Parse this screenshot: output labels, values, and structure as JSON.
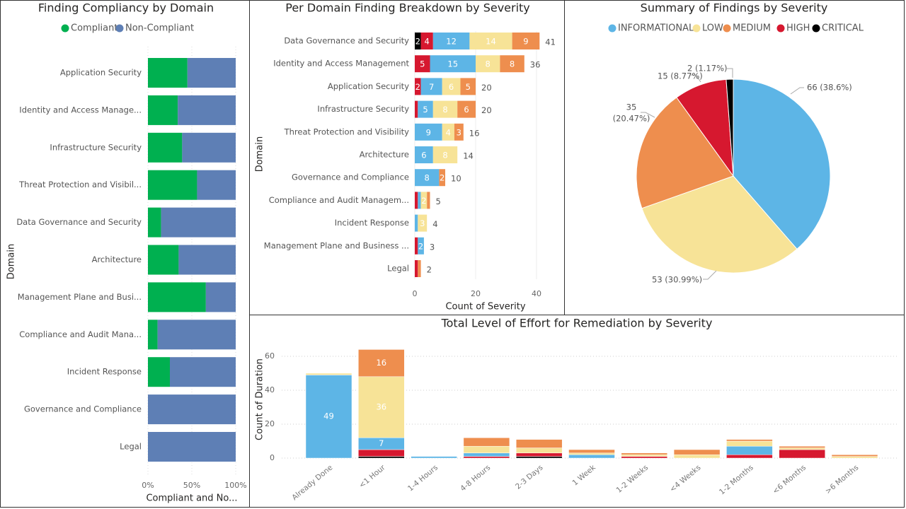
{
  "colors": {
    "compliant": "#00B050",
    "non_compliant": "#5E7FB5",
    "informational": "#5DB5E6",
    "low": "#F7E397",
    "medium": "#EE8E4E",
    "high": "#D6182F",
    "critical": "#000000"
  },
  "chart_data": [
    {
      "type": "bar",
      "orientation": "horizontal-100%-stacked",
      "title": "Finding Compliancy by Domain",
      "legend": [
        "Compliant",
        "Non-Compliant"
      ],
      "legend_placement": "top",
      "xlabel": "Compliant and No...",
      "ylabel": "Domain",
      "xticks": [
        "0%",
        "50%",
        "100%"
      ],
      "categories": [
        "Application Security",
        "Identity and Access Manage...",
        "Infrastructure Security",
        "Threat Protection and Visibil...",
        "Data Governance and Security",
        "Architecture",
        "Management Plane and Busi...",
        "Compliance and Audit Mana...",
        "Incident Response",
        "Governance and Compliance",
        "Legal"
      ],
      "series": [
        {
          "name": "Compliant",
          "values": [
            45,
            34,
            39,
            56,
            15,
            35,
            66,
            11,
            25,
            0,
            0
          ]
        },
        {
          "name": "Non-Compliant",
          "values": [
            55,
            66,
            61,
            44,
            85,
            65,
            34,
            89,
            75,
            100,
            100
          ]
        }
      ],
      "xlim": [
        0,
        100
      ]
    },
    {
      "type": "bar",
      "orientation": "horizontal-stacked",
      "title": "Per Domain Finding Breakdown by Severity",
      "xlabel": "Count of Severity",
      "ylabel": "Domain",
      "xticks": [
        "0",
        "20",
        "40"
      ],
      "xlim": [
        0,
        45
      ],
      "categories": [
        "Data Governance and Security",
        "Identity and Access Management",
        "Application Security",
        "Infrastructure Security",
        "Threat Protection and Visibility",
        "Architecture",
        "Governance and Compliance",
        "Compliance and Audit Managem...",
        "Incident Response",
        "Management Plane and Business ...",
        "Legal"
      ],
      "series": [
        {
          "name": "CRITICAL",
          "values": [
            2,
            0,
            0,
            0,
            0,
            0,
            0,
            0,
            0,
            0,
            0
          ]
        },
        {
          "name": "HIGH",
          "values": [
            4,
            5,
            2,
            1,
            0,
            0,
            0,
            1,
            0,
            1,
            1
          ]
        },
        {
          "name": "INFORMATIONAL",
          "values": [
            12,
            15,
            7,
            5,
            9,
            6,
            8,
            1,
            1,
            2,
            0
          ]
        },
        {
          "name": "LOW",
          "values": [
            14,
            8,
            6,
            8,
            4,
            8,
            0,
            2,
            3,
            0,
            0
          ]
        },
        {
          "name": "MEDIUM",
          "values": [
            9,
            8,
            5,
            6,
            3,
            0,
            2,
            1,
            0,
            0,
            1
          ]
        }
      ],
      "totals": [
        "41",
        "36",
        "20",
        "20",
        "16",
        "14",
        "10",
        "5",
        "4",
        "3",
        "2"
      ]
    },
    {
      "type": "pie",
      "title": "Summary of Findings by Severity",
      "legend": [
        "INFORMATIONAL",
        "LOW",
        "MEDIUM",
        "HIGH",
        "CRITICAL"
      ],
      "legend_placement": "top",
      "values": [
        66,
        53,
        35,
        15,
        2
      ],
      "labels": [
        "66 (38.6%)",
        "53 (30.99%)",
        "35",
        "15 (8.77%)",
        "2 (1.17%)"
      ],
      "label_extra": [
        "",
        "",
        "(20.47%)",
        "",
        ""
      ]
    },
    {
      "type": "bar",
      "orientation": "vertical-stacked",
      "title": "Total Level of Effort for Remediation by Severity",
      "ylabel": "Count of Duration",
      "yticks": [
        "0",
        "20",
        "40",
        "60"
      ],
      "ylim": [
        0,
        65
      ],
      "grid": true,
      "categories": [
        "Already Done",
        "<1 Hour",
        "1-4 Hours",
        "4-8 Hours",
        "2-3 Days",
        "1 Week",
        "1-2 Weeks",
        "<4 Weeks",
        "1-2 Months",
        "<6 Months",
        ">6 Months"
      ],
      "series": [
        {
          "name": "CRITICAL",
          "values": [
            0,
            1,
            0,
            0,
            1,
            0,
            0,
            0,
            0,
            0,
            0
          ]
        },
        {
          "name": "HIGH",
          "values": [
            0,
            4,
            0,
            1,
            2,
            0,
            1,
            0,
            2,
            5,
            0
          ]
        },
        {
          "name": "INFORMATIONAL",
          "values": [
            49,
            7,
            1,
            2,
            0,
            2,
            0,
            0,
            5,
            0,
            0
          ]
        },
        {
          "name": "LOW",
          "values": [
            1,
            36,
            0,
            4,
            3,
            1,
            1,
            2,
            3,
            1,
            1
          ]
        },
        {
          "name": "MEDIUM",
          "values": [
            0,
            16,
            0,
            5,
            5,
            2,
            1,
            3,
            1,
            1,
            1
          ]
        }
      ],
      "data_labels": {
        "0-2": "49",
        "1-2": "7",
        "1-3": "36",
        "1-4": "16"
      }
    }
  ]
}
